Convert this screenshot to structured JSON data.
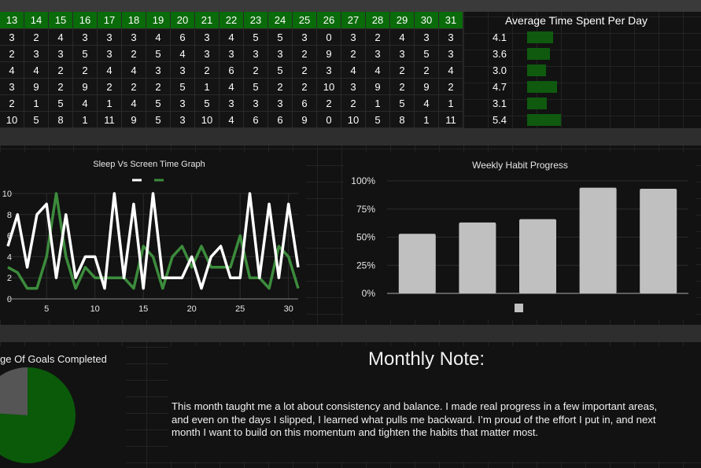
{
  "colors": {
    "header_green": "#0a6b0a",
    "bar_green": "#0f5a0f",
    "line_green": "#3c8c3c",
    "line_white": "#ffffff",
    "bar_gray": "#c0c0c0"
  },
  "tracker": {
    "day_headers": [
      "13",
      "14",
      "15",
      "16",
      "17",
      "18",
      "19",
      "20",
      "21",
      "22",
      "23",
      "24",
      "25",
      "26",
      "27",
      "28",
      "29",
      "30",
      "31"
    ],
    "rows": [
      [
        "3",
        "2",
        "4",
        "3",
        "3",
        "3",
        "4",
        "6",
        "3",
        "4",
        "5",
        "5",
        "3",
        "0",
        "3",
        "2",
        "4",
        "3",
        "3"
      ],
      [
        "2",
        "3",
        "3",
        "5",
        "3",
        "2",
        "5",
        "4",
        "3",
        "3",
        "3",
        "3",
        "2",
        "9",
        "2",
        "3",
        "3",
        "5",
        "3"
      ],
      [
        "4",
        "4",
        "2",
        "2",
        "4",
        "4",
        "3",
        "3",
        "2",
        "6",
        "2",
        "5",
        "2",
        "3",
        "4",
        "4",
        "2",
        "2",
        "4"
      ],
      [
        "3",
        "9",
        "2",
        "9",
        "2",
        "2",
        "2",
        "5",
        "1",
        "4",
        "5",
        "2",
        "2",
        "10",
        "3",
        "9",
        "2",
        "9",
        "2"
      ],
      [
        "2",
        "1",
        "5",
        "4",
        "1",
        "4",
        "5",
        "3",
        "5",
        "3",
        "3",
        "3",
        "6",
        "2",
        "2",
        "1",
        "5",
        "4",
        "1"
      ],
      [
        "10",
        "5",
        "8",
        "1",
        "11",
        "9",
        "5",
        "3",
        "10",
        "4",
        "6",
        "6",
        "9",
        "0",
        "10",
        "5",
        "8",
        "1",
        "11"
      ]
    ]
  },
  "average": {
    "title": "Average Time Spent Per Day",
    "values": [
      "4.1",
      "3.6",
      "3.0",
      "4.7",
      "3.1",
      "5.4"
    ],
    "bar_values": [
      4.1,
      3.6,
      3.0,
      4.7,
      3.1,
      5.4
    ]
  },
  "note": {
    "title": "Monthly Note:",
    "text": "This month taught me a lot about consistency and balance. I made real progress in a few important areas, and even on the days I slipped, I learned what pulls me backward. I’m proud of the effort I put in, and next month I want to build on this momentum and tighten the habits that matter most."
  },
  "pie": {
    "title": "ge Of Goals Completed"
  },
  "chart_data": [
    {
      "type": "line",
      "title": "Sleep Vs Screen Time Graph",
      "xlabel": "",
      "ylabel": "",
      "x_ticks": [
        "5",
        "10",
        "15",
        "20",
        "25",
        "30"
      ],
      "y_ticks": [
        "0",
        "2",
        "4",
        "6",
        "8",
        "10"
      ],
      "xlim": [
        1,
        31
      ],
      "ylim": [
        0,
        10
      ],
      "x": [
        1,
        2,
        3,
        4,
        5,
        6,
        7,
        8,
        9,
        10,
        11,
        12,
        13,
        14,
        15,
        16,
        17,
        18,
        19,
        20,
        21,
        22,
        23,
        24,
        25,
        26,
        27,
        28,
        29,
        30,
        31
      ],
      "series": [
        {
          "color": "#ffffff",
          "values": [
            5,
            8,
            3,
            8,
            9,
            2,
            8,
            2,
            4,
            4,
            1,
            10,
            2,
            9,
            1,
            10,
            2,
            2,
            2,
            4,
            1,
            4,
            5,
            2,
            2,
            10,
            2,
            9,
            2,
            9,
            3
          ]
        },
        {
          "color": "#3c8c3c",
          "values": [
            3,
            2.5,
            1,
            1,
            4,
            10,
            4,
            1,
            3,
            2,
            2,
            2,
            2,
            1,
            5,
            4,
            1,
            4,
            5,
            3,
            5,
            3,
            3,
            3,
            6,
            2,
            2,
            1,
            5,
            4,
            1
          ]
        }
      ]
    },
    {
      "type": "bar",
      "title": "Weekly Habit Progress",
      "categories": [
        "",
        "",
        "",
        "",
        ""
      ],
      "values": [
        0.53,
        0.63,
        0.66,
        0.94,
        0.93
      ],
      "y_ticks": [
        "0%",
        "25%",
        "50%",
        "75%",
        "100%"
      ],
      "ylim": [
        0,
        1
      ],
      "legend": {
        "position": "bottom"
      }
    },
    {
      "type": "pie",
      "title": "ge Of Goals Completed",
      "values": [
        0.76,
        0.24
      ],
      "colors": [
        "#0a5a0a",
        "#555555"
      ]
    }
  ]
}
